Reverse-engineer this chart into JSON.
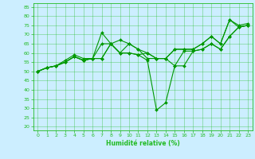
{
  "xlabel": "Humidité relative (%)",
  "bg_color": "#cceeff",
  "grid_color": "#22bb22",
  "line_color": "#009900",
  "xlim": [
    -0.5,
    23.5
  ],
  "ylim": [
    18,
    87
  ],
  "yticks": [
    20,
    25,
    30,
    35,
    40,
    45,
    50,
    55,
    60,
    65,
    70,
    75,
    80,
    85
  ],
  "xticks": [
    0,
    1,
    2,
    3,
    4,
    5,
    6,
    7,
    8,
    9,
    10,
    11,
    12,
    13,
    14,
    15,
    16,
    17,
    18,
    19,
    20,
    21,
    22,
    23
  ],
  "series": [
    [
      50,
      52,
      53,
      56,
      59,
      57,
      57,
      71,
      65,
      67,
      65,
      62,
      57,
      57,
      57,
      62,
      62,
      62,
      65,
      69,
      65,
      78,
      75,
      76
    ],
    [
      50,
      52,
      53,
      55,
      58,
      56,
      57,
      65,
      65,
      60,
      65,
      62,
      60,
      57,
      57,
      62,
      62,
      62,
      65,
      69,
      65,
      78,
      74,
      75
    ],
    [
      50,
      52,
      53,
      55,
      58,
      56,
      57,
      57,
      65,
      60,
      60,
      59,
      60,
      57,
      57,
      53,
      61,
      61,
      62,
      65,
      62,
      69,
      74,
      75
    ],
    [
      50,
      52,
      53,
      55,
      58,
      56,
      57,
      57,
      65,
      60,
      60,
      59,
      56,
      29,
      33,
      53,
      53,
      61,
      62,
      65,
      62,
      69,
      74,
      75
    ]
  ]
}
